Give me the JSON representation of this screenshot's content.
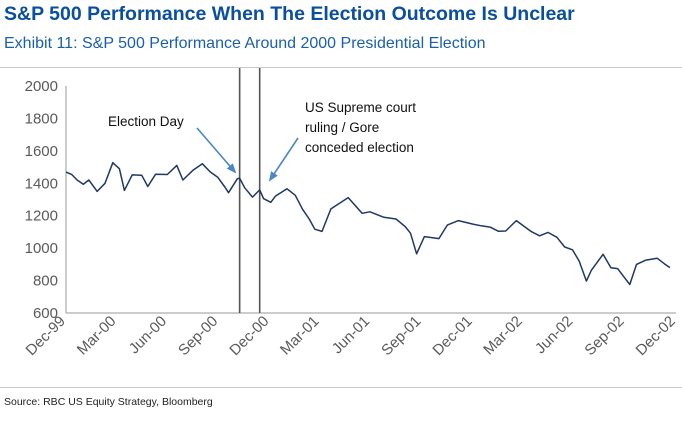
{
  "title": "S&P 500 Performance When The Election Outcome Is Unclear",
  "subtitle": "Exhibit 11: S&P 500 Performance Around 2000 Presidential Election",
  "source": "Source: RBC US Equity Strategy, Bloomberg",
  "colors": {
    "title": "#0a4f9e",
    "line": "#1f3864",
    "arrow": "#4a86c8",
    "marker": "#555555"
  },
  "chart_data": {
    "type": "line",
    "ylim": [
      600,
      2000
    ],
    "y_ticks": [
      "2000",
      "1800",
      "1600",
      "1400",
      "1200",
      "1000",
      "800",
      "600"
    ],
    "x_ticks": [
      "Dec-99",
      "Mar-00",
      "Jun-00",
      "Sep-00",
      "Dec-00",
      "Mar-01",
      "Jun-01",
      "Sep-01",
      "Dec-01",
      "Mar-02",
      "Jun-02",
      "Sep-02",
      "Dec-02"
    ],
    "grid": false,
    "series": [
      {
        "values": [
          {
            "x": "1999-12-31",
            "y": 1469
          },
          {
            "x": "2000-01-10",
            "y": 1455
          },
          {
            "x": "2000-01-20",
            "y": 1420
          },
          {
            "x": "2000-01-31",
            "y": 1394
          },
          {
            "x": "2000-02-10",
            "y": 1420
          },
          {
            "x": "2000-02-25",
            "y": 1350
          },
          {
            "x": "2000-03-10",
            "y": 1400
          },
          {
            "x": "2000-03-24",
            "y": 1527
          },
          {
            "x": "2000-04-05",
            "y": 1490
          },
          {
            "x": "2000-04-14",
            "y": 1356
          },
          {
            "x": "2000-04-28",
            "y": 1452
          },
          {
            "x": "2000-05-15",
            "y": 1450
          },
          {
            "x": "2000-05-26",
            "y": 1380
          },
          {
            "x": "2000-06-09",
            "y": 1456
          },
          {
            "x": "2000-06-30",
            "y": 1454
          },
          {
            "x": "2000-07-17",
            "y": 1510
          },
          {
            "x": "2000-07-28",
            "y": 1420
          },
          {
            "x": "2000-08-15",
            "y": 1480
          },
          {
            "x": "2000-09-01",
            "y": 1520
          },
          {
            "x": "2000-09-15",
            "y": 1470
          },
          {
            "x": "2000-09-29",
            "y": 1436
          },
          {
            "x": "2000-10-12",
            "y": 1374
          },
          {
            "x": "2000-10-18",
            "y": 1342
          },
          {
            "x": "2000-11-03",
            "y": 1428
          },
          {
            "x": "2000-11-07",
            "y": 1432
          },
          {
            "x": "2000-11-16",
            "y": 1372
          },
          {
            "x": "2000-11-30",
            "y": 1315
          },
          {
            "x": "2000-12-13",
            "y": 1359
          },
          {
            "x": "2000-12-20",
            "y": 1305
          },
          {
            "x": "2001-01-02",
            "y": 1283
          },
          {
            "x": "2001-01-10",
            "y": 1320
          },
          {
            "x": "2001-01-31",
            "y": 1366
          },
          {
            "x": "2001-02-15",
            "y": 1326
          },
          {
            "x": "2001-02-28",
            "y": 1240
          },
          {
            "x": "2001-03-12",
            "y": 1180
          },
          {
            "x": "2001-03-22",
            "y": 1117
          },
          {
            "x": "2001-04-04",
            "y": 1103
          },
          {
            "x": "2001-04-20",
            "y": 1242
          },
          {
            "x": "2001-05-21",
            "y": 1312
          },
          {
            "x": "2001-06-15",
            "y": 1215
          },
          {
            "x": "2001-06-29",
            "y": 1224
          },
          {
            "x": "2001-07-24",
            "y": 1190
          },
          {
            "x": "2001-08-15",
            "y": 1180
          },
          {
            "x": "2001-08-31",
            "y": 1134
          },
          {
            "x": "2001-09-10",
            "y": 1092
          },
          {
            "x": "2001-09-21",
            "y": 965
          },
          {
            "x": "2001-10-05",
            "y": 1071
          },
          {
            "x": "2001-10-31",
            "y": 1059
          },
          {
            "x": "2001-11-15",
            "y": 1142
          },
          {
            "x": "2001-12-05",
            "y": 1170
          },
          {
            "x": "2001-12-31",
            "y": 1148
          },
          {
            "x": "2002-01-15",
            "y": 1138
          },
          {
            "x": "2002-01-31",
            "y": 1130
          },
          {
            "x": "2002-02-15",
            "y": 1104
          },
          {
            "x": "2002-02-28",
            "y": 1106
          },
          {
            "x": "2002-03-19",
            "y": 1170
          },
          {
            "x": "2002-04-15",
            "y": 1102
          },
          {
            "x": "2002-04-30",
            "y": 1076
          },
          {
            "x": "2002-05-15",
            "y": 1097
          },
          {
            "x": "2002-05-31",
            "y": 1067
          },
          {
            "x": "2002-06-14",
            "y": 1007
          },
          {
            "x": "2002-06-28",
            "y": 990
          },
          {
            "x": "2002-07-10",
            "y": 920
          },
          {
            "x": "2002-07-23",
            "y": 797
          },
          {
            "x": "2002-08-01",
            "y": 864
          },
          {
            "x": "2002-08-22",
            "y": 962
          },
          {
            "x": "2002-09-05",
            "y": 879
          },
          {
            "x": "2002-09-17",
            "y": 874
          },
          {
            "x": "2002-09-30",
            "y": 815
          },
          {
            "x": "2002-10-09",
            "y": 776
          },
          {
            "x": "2002-10-21",
            "y": 900
          },
          {
            "x": "2002-11-06",
            "y": 925
          },
          {
            "x": "2002-11-27",
            "y": 938
          },
          {
            "x": "2002-12-10",
            "y": 904
          },
          {
            "x": "2002-12-20",
            "y": 880
          }
        ]
      }
    ],
    "event_markers": [
      {
        "date": "2000-11-07",
        "label": "Election Day"
      },
      {
        "date": "2000-12-13",
        "label": "US Supreme court ruling / Gore conceded election"
      }
    ],
    "annotations": [
      {
        "id": "election",
        "lines": [
          "Election Day"
        ]
      },
      {
        "id": "ruling",
        "lines": [
          "US Supreme court",
          "ruling / Gore",
          "conceded election"
        ]
      }
    ]
  }
}
